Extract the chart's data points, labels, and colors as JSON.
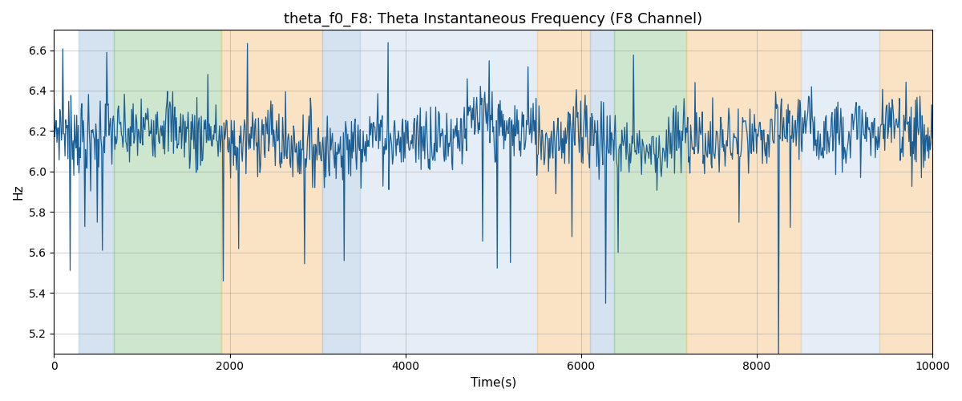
{
  "title": "theta_f0_F8: Theta Instantaneous Frequency (F8 Channel)",
  "xlabel": "Time(s)",
  "ylabel": "Hz",
  "xlim": [
    0,
    10000
  ],
  "ylim": [
    5.1,
    6.7
  ],
  "yticks": [
    5.2,
    5.4,
    5.6,
    5.8,
    6.0,
    6.2,
    6.4,
    6.6
  ],
  "line_color": "#1b5e96",
  "line_width": 0.9,
  "bg_color": "white",
  "bands": [
    {
      "xmin": 280,
      "xmax": 680,
      "color": "#aac8e0",
      "alpha": 0.5
    },
    {
      "xmin": 680,
      "xmax": 1900,
      "color": "#90c890",
      "alpha": 0.45
    },
    {
      "xmin": 1900,
      "xmax": 3050,
      "color": "#f5c98a",
      "alpha": 0.5
    },
    {
      "xmin": 3050,
      "xmax": 3480,
      "color": "#aac8e0",
      "alpha": 0.5
    },
    {
      "xmin": 3480,
      "xmax": 5500,
      "color": "#ccdcee",
      "alpha": 0.5
    },
    {
      "xmin": 5500,
      "xmax": 6100,
      "color": "#f5c98a",
      "alpha": 0.5
    },
    {
      "xmin": 6100,
      "xmax": 6380,
      "color": "#aac8e0",
      "alpha": 0.5
    },
    {
      "xmin": 6380,
      "xmax": 7200,
      "color": "#90c890",
      "alpha": 0.45
    },
    {
      "xmin": 7200,
      "xmax": 8500,
      "color": "#f5c98a",
      "alpha": 0.5
    },
    {
      "xmin": 8500,
      "xmax": 9400,
      "color": "#ccdcee",
      "alpha": 0.5
    },
    {
      "xmin": 9400,
      "xmax": 10100,
      "color": "#f5c98a",
      "alpha": 0.5
    }
  ],
  "n_points": 1200,
  "seed": 7,
  "base_freq": 6.17,
  "noise_std": 0.09,
  "n_downspikes": 18,
  "downspike_mag_min": 0.5,
  "downspike_mag_max": 1.1
}
